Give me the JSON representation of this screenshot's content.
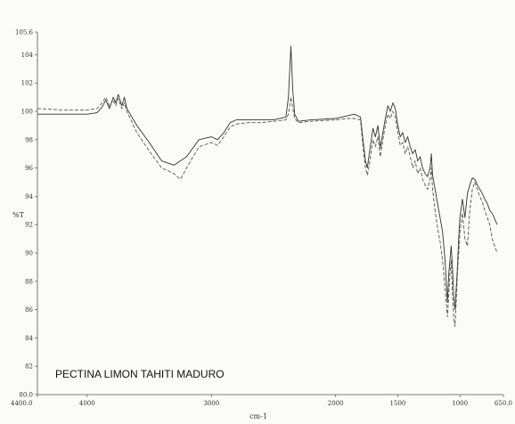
{
  "chart_data": {
    "type": "line",
    "title": "",
    "xlabel": "cm-1",
    "ylabel": "%T",
    "xlim": [
      4400.0,
      650.0
    ],
    "ylim": [
      80.0,
      105.6
    ],
    "x_ticks": [
      {
        "value": 4400,
        "label": "4400.0"
      },
      {
        "value": 4000,
        "label": "4000"
      },
      {
        "value": 3000,
        "label": "3000"
      },
      {
        "value": 2000,
        "label": "2000"
      },
      {
        "value": 1500,
        "label": "1500"
      },
      {
        "value": 1000,
        "label": "1000"
      },
      {
        "value": 650,
        "label": "650.0"
      }
    ],
    "y_ticks": [
      {
        "value": 80,
        "label": "80.0"
      },
      {
        "value": 82,
        "label": "82"
      },
      {
        "value": 84,
        "label": "84"
      },
      {
        "value": 86,
        "label": "86"
      },
      {
        "value": 88,
        "label": "88"
      },
      {
        "value": 90,
        "label": "90"
      },
      {
        "value": 92,
        "label": "92"
      },
      {
        "value": 94,
        "label": "94"
      },
      {
        "value": 96,
        "label": "96"
      },
      {
        "value": 98,
        "label": "98"
      },
      {
        "value": 100,
        "label": "100"
      },
      {
        "value": 102,
        "label": "102"
      },
      {
        "value": 104,
        "label": "104"
      },
      {
        "value": 105.6,
        "label": "105.6"
      }
    ],
    "grid": false,
    "annotation": "PECTINA LIMON TAHITI MADURO",
    "series": [
      {
        "style": "solid",
        "color": "#333333",
        "x": [
          4400,
          4200,
          4000,
          3920,
          3880,
          3850,
          3820,
          3790,
          3770,
          3750,
          3720,
          3700,
          3680,
          3600,
          3500,
          3400,
          3300,
          3200,
          3100,
          3000,
          2950,
          2900,
          2850,
          2800,
          2700,
          2600,
          2500,
          2400,
          2380,
          2360,
          2345,
          2330,
          2300,
          2200,
          2000,
          1900,
          1850,
          1800,
          1780,
          1760,
          1745,
          1730,
          1700,
          1680,
          1660,
          1640,
          1620,
          1600,
          1580,
          1560,
          1540,
          1520,
          1500,
          1480,
          1460,
          1440,
          1420,
          1400,
          1380,
          1360,
          1340,
          1320,
          1300,
          1280,
          1260,
          1240,
          1230,
          1220,
          1200,
          1180,
          1160,
          1140,
          1120,
          1100,
          1090,
          1080,
          1070,
          1060,
          1050,
          1040,
          1030,
          1020,
          1010,
          1000,
          980,
          960,
          940,
          920,
          900,
          880,
          860,
          840,
          820,
          800,
          780,
          760,
          740,
          720,
          700
        ],
        "y": [
          99.8,
          99.8,
          99.8,
          99.9,
          100.3,
          100.8,
          100.2,
          101.0,
          100.6,
          101.2,
          100.4,
          101.0,
          100.2,
          99.0,
          97.8,
          96.5,
          96.2,
          96.8,
          98.0,
          98.2,
          98.0,
          98.5,
          99.2,
          99.4,
          99.4,
          99.4,
          99.4,
          99.6,
          101.0,
          104.6,
          101.5,
          99.8,
          99.3,
          99.4,
          99.5,
          99.7,
          99.8,
          99.6,
          98.0,
          96.5,
          96.0,
          97.0,
          98.8,
          98.2,
          99.0,
          97.4,
          98.5,
          99.5,
          100.4,
          100.0,
          100.6,
          100.2,
          99.0,
          98.2,
          98.5,
          97.8,
          98.2,
          97.5,
          97.0,
          97.3,
          96.5,
          96.8,
          96.0,
          95.6,
          95.4,
          96.0,
          97.0,
          95.5,
          94.5,
          93.5,
          92.5,
          91.5,
          89.5,
          86.5,
          88.5,
          89.5,
          90.5,
          89.0,
          87.0,
          86.0,
          87.5,
          89.0,
          91.0,
          92.5,
          93.8,
          92.5,
          94.2,
          94.8,
          95.3,
          95.2,
          94.8,
          94.5,
          94.2,
          93.8,
          93.5,
          93.0,
          92.8,
          92.4,
          92.0
        ]
      },
      {
        "style": "dashed",
        "color": "#555555",
        "x": [
          4400,
          4200,
          4000,
          3920,
          3880,
          3850,
          3820,
          3790,
          3770,
          3750,
          3720,
          3700,
          3680,
          3600,
          3500,
          3400,
          3300,
          3250,
          3200,
          3100,
          3000,
          2950,
          2900,
          2850,
          2800,
          2700,
          2600,
          2500,
          2400,
          2380,
          2360,
          2345,
          2330,
          2300,
          2200,
          2000,
          1900,
          1850,
          1800,
          1780,
          1760,
          1745,
          1730,
          1700,
          1680,
          1660,
          1640,
          1620,
          1600,
          1580,
          1560,
          1540,
          1520,
          1500,
          1480,
          1460,
          1440,
          1420,
          1400,
          1380,
          1360,
          1340,
          1320,
          1300,
          1280,
          1260,
          1240,
          1230,
          1220,
          1200,
          1180,
          1160,
          1140,
          1120,
          1100,
          1090,
          1080,
          1070,
          1060,
          1050,
          1040,
          1030,
          1020,
          1010,
          1000,
          980,
          960,
          940,
          920,
          900,
          880,
          860,
          840,
          820,
          800,
          780,
          760,
          740,
          720,
          700
        ],
        "y": [
          100.2,
          100.1,
          100.1,
          100.2,
          100.6,
          101.0,
          100.4,
          100.8,
          100.4,
          100.9,
          100.2,
          100.6,
          100.0,
          98.5,
          97.2,
          96.0,
          95.6,
          95.2,
          96.0,
          97.5,
          97.8,
          97.6,
          98.2,
          98.9,
          99.1,
          99.2,
          99.2,
          99.3,
          99.4,
          99.8,
          101.0,
          100.2,
          99.5,
          99.2,
          99.3,
          99.4,
          99.5,
          99.5,
          99.4,
          97.5,
          96.0,
          95.5,
          96.2,
          98.0,
          97.5,
          98.2,
          96.8,
          98.0,
          99.0,
          99.8,
          99.5,
          100.0,
          99.6,
          98.5,
          97.6,
          97.8,
          97.0,
          97.5,
          96.8,
          96.0,
          96.5,
          95.6,
          96.0,
          95.2,
          94.8,
          94.5,
          95.2,
          96.0,
          94.5,
          93.0,
          91.8,
          90.8,
          89.5,
          87.5,
          85.5,
          87.0,
          88.5,
          89.5,
          87.0,
          85.5,
          84.8,
          86.5,
          88.5,
          90.0,
          91.5,
          92.8,
          91.0,
          90.5,
          93.0,
          94.5,
          95.0,
          94.5,
          94.0,
          93.6,
          93.0,
          92.5,
          92.0,
          91.0,
          90.5,
          90.0
        ]
      }
    ]
  }
}
